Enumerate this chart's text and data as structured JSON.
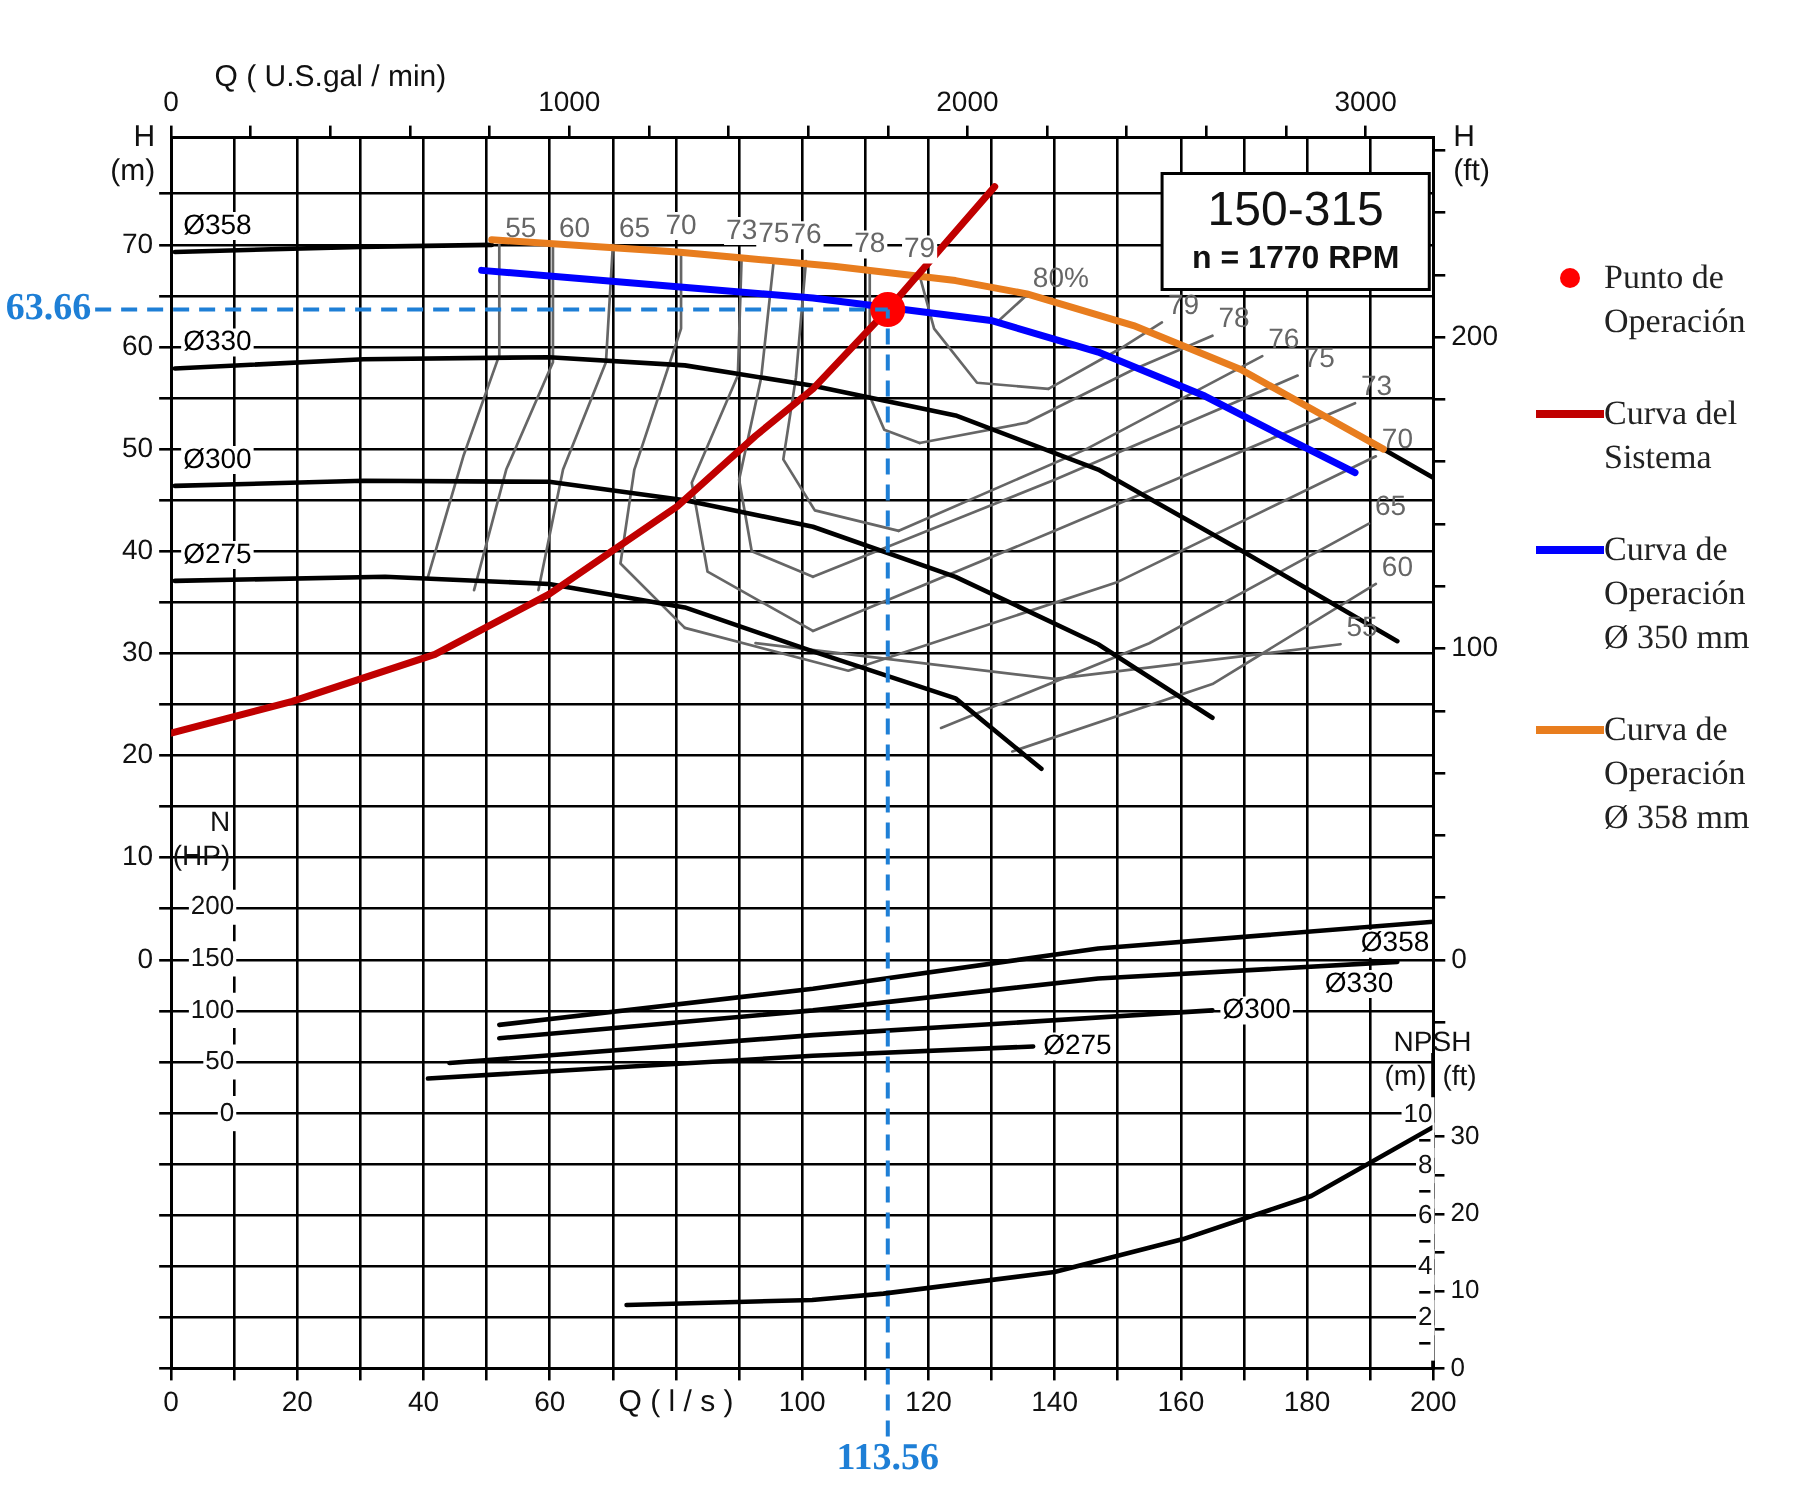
{
  "chart_data": [
    {
      "type": "line",
      "title": "150-315",
      "subtitle": "n = 1770 RPM",
      "xlabel": "Q ( l / s )",
      "x2label": "Q ( U.S.gal / min)",
      "ylabel": "H (m)",
      "y2label": "H (ft)",
      "y3label": "N (HP)",
      "xlim": [
        0,
        200
      ],
      "xticks": [
        0,
        {
          "value": 10,
          "label": null
        },
        20,
        {
          "value": 30,
          "label": null
        },
        40,
        {
          "value": 50,
          "label": null
        },
        60,
        {
          "value": 70,
          "label": null
        },
        {
          "value": 80,
          "label": null
        },
        {
          "value": 90,
          "label": null
        },
        100,
        {
          "value": 110,
          "label": null
        },
        120,
        {
          "value": 130,
          "label": null
        },
        140,
        {
          "value": 150,
          "label": null
        },
        160,
        {
          "value": 170,
          "label": null
        },
        180,
        {
          "value": 190,
          "label": null
        },
        200
      ],
      "x2lim": [
        0,
        3170
      ],
      "x2ticks": [
        0,
        {
          "value": 200,
          "label": null
        },
        {
          "value": 400,
          "label": null
        },
        {
          "value": 600,
          "label": null
        },
        {
          "value": 800,
          "label": null
        },
        1000,
        {
          "value": 1200,
          "label": null
        },
        {
          "value": 1400,
          "label": null
        },
        {
          "value": 1600,
          "label": null
        },
        {
          "value": 1800,
          "label": null
        },
        2000,
        {
          "value": 2200,
          "label": null
        },
        {
          "value": 2400,
          "label": null
        },
        {
          "value": 2600,
          "label": null
        },
        {
          "value": 2800,
          "label": null
        },
        3000
      ],
      "ylim": [
        -40,
        80.5
      ],
      "yticks": [
        {
          "value": -40,
          "label": null
        },
        {
          "value": -35,
          "label": null
        },
        {
          "value": -30,
          "label": null
        },
        {
          "value": -25,
          "label": null
        },
        {
          "value": -20,
          "label": null
        },
        {
          "value": -15,
          "label": null
        },
        {
          "value": -10,
          "label": null
        },
        {
          "value": -5,
          "label": null
        },
        0,
        {
          "value": 5,
          "label": null
        },
        10,
        {
          "value": 15,
          "label": null
        },
        20,
        {
          "value": 25,
          "label": null
        },
        30,
        {
          "value": 35,
          "label": null
        },
        40,
        {
          "value": 45,
          "label": null
        },
        50,
        {
          "value": 55,
          "label": null
        },
        60,
        {
          "value": 65,
          "label": null
        },
        70,
        {
          "value": 75,
          "label": null
        }
      ],
      "y2lim": [
        -131.2,
        264.1
      ],
      "y2ticks": [
        {
          "value": -20,
          "label": null
        },
        0,
        {
          "value": 20,
          "label": null
        },
        {
          "value": 40,
          "label": null
        },
        {
          "value": 60,
          "label": null
        },
        {
          "value": 80,
          "label": null
        },
        100,
        {
          "value": 120,
          "label": null
        },
        {
          "value": 140,
          "label": null
        },
        {
          "value": 160,
          "label": null
        },
        {
          "value": 180,
          "label": null
        },
        200,
        {
          "value": 220,
          "label": null
        },
        {
          "value": 240,
          "label": null
        },
        {
          "value": 260,
          "label": null
        }
      ],
      "y3lim": [
        -247,
        946
      ],
      "y3ticks": [
        0,
        50,
        100,
        150,
        200
      ],
      "grid": true,
      "legend": "right",
      "ref_lines": [
        {
          "axis": "x",
          "value": 113.56,
          "label": "113.56",
          "color": "#1e7fd6",
          "line_style": "dashed"
        },
        {
          "axis": "y",
          "value": 63.66,
          "label": "63.66",
          "color": "#1e7fd6",
          "line_style": "dashed"
        }
      ],
      "series": [
        {
          "name": "Punto de Operación",
          "type": "scatter",
          "color": "#ff0000",
          "x": [
            113.56
          ],
          "values": [
            63.66
          ]
        },
        {
          "name": "Curva del Sistema",
          "color": "#c00000",
          "x": [
            0,
            19.2,
            41.8,
            59.9,
            80.2,
            92.6,
            101.7,
            113.56,
            130.5
          ],
          "values": [
            22.2,
            25.3,
            29.9,
            35.8,
            44.4,
            51.3,
            55.9,
            63.66,
            75.7
          ]
        },
        {
          "name": "Curva de Operación Ø 350 mm",
          "color": "#0000ff",
          "x": [
            49.2,
            80.2,
            101.7,
            129.9,
            146.9,
            163.8,
            175.1,
            187.6
          ],
          "values": [
            67.5,
            65.9,
            64.8,
            62.6,
            59.5,
            55.2,
            51.6,
            47.7
          ]
        },
        {
          "name": "Curva de Operación Ø 358 mm",
          "color": "#e87d1e",
          "x": [
            50.8,
            80.2,
            105,
            124.3,
            135.6,
            152.5,
            169.5,
            180.8,
            192.1
          ],
          "values": [
            70.5,
            69.3,
            67.9,
            66.5,
            65.2,
            62.1,
            57.8,
            53.9,
            50.0
          ]
        },
        {
          "name": "Ø358",
          "color": "#000000",
          "x": [
            0.6,
            30,
            50.8,
            80.2,
            105,
            124.3,
            135.6,
            152.5,
            169.5,
            180.8,
            192.1,
            200
          ],
          "values": [
            69.3,
            69.8,
            70.0,
            null,
            null,
            null,
            null,
            null,
            null,
            null,
            50.0,
            47.2
          ]
        },
        {
          "name": "Ø330",
          "color": "#000000",
          "x": [
            0.6,
            30.5,
            59.9,
            81.4,
            101.7,
            124.3,
            146.9,
            169.5,
            194.3
          ],
          "values": [
            57.9,
            58.8,
            59.0,
            58.2,
            56.2,
            53.3,
            48.0,
            40.1,
            31.2
          ]
        },
        {
          "name": "Ø300",
          "color": "#000000",
          "x": [
            0.6,
            30.5,
            59.9,
            81.4,
            101.7,
            124.3,
            146.9,
            165
          ],
          "values": [
            46.4,
            46.9,
            46.8,
            45.0,
            42.4,
            37.5,
            30.9,
            23.7
          ]
        },
        {
          "name": "Ø275",
          "color": "#000000",
          "x": [
            0.6,
            33.9,
            59.9,
            81.4,
            101.7,
            124.3,
            137.9
          ],
          "values": [
            37.1,
            37.5,
            36.8,
            34.5,
            30.2,
            25.6,
            18.7
          ]
        },
        {
          "name": "55",
          "color": "#666666",
          "x": [
            52,
            52,
            46.3,
            40.7
          ],
          "values": [
            70,
            59.2,
            49.3,
            37.5
          ]
        },
        {
          "name": "55",
          "color": "#666666",
          "x": [
            185.3,
            140,
            92.6
          ],
          "values": [
            30.9,
            27.5,
            31
          ]
        },
        {
          "name": "60",
          "color": "#666666",
          "x": [
            60.5,
            60.5,
            53.1,
            48
          ],
          "values": [
            70,
            58.5,
            48,
            36.2
          ]
        },
        {
          "name": "60",
          "color": "#666666",
          "x": [
            190.9,
            165,
            133.3
          ],
          "values": [
            36.8,
            27,
            20.4
          ]
        },
        {
          "name": "65",
          "color": "#666666",
          "x": [
            70,
            68.9,
            62.1,
            58.2
          ],
          "values": [
            70,
            58.5,
            48,
            36.2
          ]
        },
        {
          "name": "65",
          "color": "#666666",
          "x": [
            189.8,
            155,
            122
          ],
          "values": [
            42.7,
            31,
            22.7
          ]
        },
        {
          "name": "70",
          "color": "#666666",
          "x": [
            80.8,
            80.8,
            73.4,
            71.2,
            81.4
          ],
          "values": [
            69.3,
            61.8,
            48,
            38.8,
            32.5
          ]
        },
        {
          "name": "70",
          "color": "#666666",
          "x": [
            190.9,
            150,
            107.3,
            81.4
          ],
          "values": [
            49.3,
            37,
            28.3,
            32.5
          ]
        },
        {
          "name": "73",
          "color": "#666666",
          "x": [
            90.4,
            89.8,
            82.5,
            85,
            101.7
          ],
          "values": [
            68.8,
            57.2,
            46.7,
            38,
            32.2
          ]
        },
        {
          "name": "73",
          "color": "#666666",
          "x": [
            187.6,
            140,
            101.7
          ],
          "values": [
            54.5,
            42,
            32.2
          ]
        },
        {
          "name": "75",
          "color": "#666666",
          "x": [
            95.5,
            93.5,
            90,
            92,
            101.7
          ],
          "values": [
            68.5,
            57,
            47,
            40,
            37.5
          ]
        },
        {
          "name": "75",
          "color": "#666666",
          "x": [
            178.5,
            140,
            101.7
          ],
          "values": [
            57.2,
            47,
            37.5
          ]
        },
        {
          "name": "76",
          "color": "#666666",
          "x": [
            100.6,
            99,
            97,
            102,
            115.3
          ],
          "values": [
            68.4,
            57,
            49,
            44,
            42
          ]
        },
        {
          "name": "76",
          "color": "#666666",
          "x": [
            172.9,
            145,
            115.3
          ],
          "values": [
            59.1,
            50,
            42
          ]
        },
        {
          "name": "78",
          "color": "#666666",
          "x": [
            110.7,
            110.7,
            113,
            118.6
          ],
          "values": [
            67.5,
            55.2,
            51.9,
            50.6
          ]
        },
        {
          "name": "78",
          "color": "#666666",
          "x": [
            165,
            152.5,
            135.6,
            118.6
          ],
          "values": [
            61.1,
            57.8,
            52.6,
            50.6
          ]
        },
        {
          "name": "79",
          "color": "#666666",
          "x": [
            118.6,
            120.9,
            127.7,
            139
          ],
          "values": [
            67,
            61.8,
            56.5,
            55.9
          ]
        },
        {
          "name": "79",
          "color": "#666666",
          "x": [
            157,
            150.3,
            139
          ],
          "values": [
            62.4,
            59.8,
            55.9
          ]
        },
        {
          "name": "80%",
          "color": "#666666",
          "x": [
            135.6,
            131
          ],
          "values": [
            65.1,
            62.5
          ]
        },
        {
          "name": "Ø358",
          "axis": "y3",
          "color": "#000000",
          "x": [
            52,
            101.7,
            146.9,
            200
          ],
          "values": [
            86,
            121,
            160,
            186
          ]
        },
        {
          "name": "Ø330",
          "axis": "y3",
          "color": "#000000",
          "x": [
            52,
            101.7,
            146.9,
            194.3
          ],
          "values": [
            73,
            100,
            131,
            147
          ]
        },
        {
          "name": "Ø300",
          "axis": "y3",
          "color": "#000000",
          "x": [
            44.1,
            101.7,
            165
          ],
          "values": [
            49,
            76,
            100
          ]
        },
        {
          "name": "Ø275",
          "axis": "y3",
          "color": "#000000",
          "x": [
            40.7,
            101.7,
            136.6
          ],
          "values": [
            34,
            56,
            65
          ]
        }
      ]
    },
    {
      "type": "line",
      "ylabel": "NPSH (m)",
      "y2label": "(ft)",
      "tick_labels": "y",
      "xlim": [
        0,
        200
      ],
      "ylim": [
        0,
        12.4
      ],
      "yticks": [
        {
          "value": 1,
          "label": null
        },
        2,
        {
          "value": 3,
          "label": null
        },
        4,
        {
          "value": 5,
          "label": null
        },
        6,
        {
          "value": 7,
          "label": null
        },
        8,
        {
          "value": 9,
          "label": null
        },
        10
      ],
      "y2lim": [
        0,
        40.7
      ],
      "y2ticks": [
        0,
        {
          "value": 5,
          "label": null
        },
        10,
        {
          "value": 15,
          "label": null
        },
        20,
        {
          "value": 25,
          "label": null
        },
        30
      ],
      "series": [
        {
          "color": "#000000",
          "x": [
            72.3,
            101.7,
            113,
            140.1,
            160.5,
            180.8,
            200
          ],
          "values": [
            2.5,
            2.7,
            2.95,
            3.8,
            5.1,
            6.8,
            9.5
          ]
        }
      ]
    }
  ]
}
